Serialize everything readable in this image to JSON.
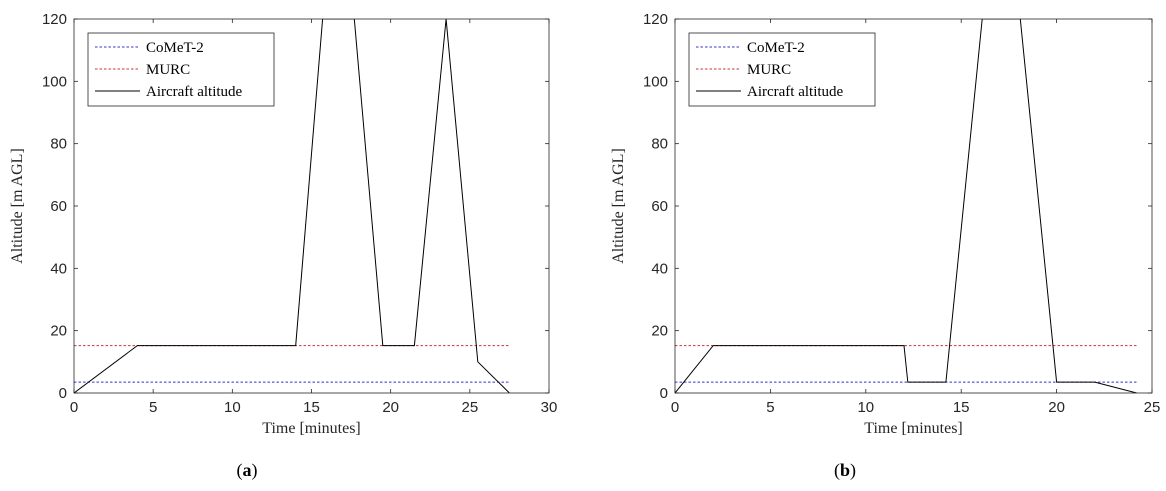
{
  "colors": {
    "comet": "#3333cc",
    "murc": "#cc3333",
    "aircraft": "#000000",
    "axis": "#262626"
  },
  "panels": [
    {
      "caption_letter": "a",
      "chart_data": {
        "type": "line",
        "title": "",
        "xlabel": "Time [minutes]",
        "ylabel": "Altitude [m AGL]",
        "xlim": [
          0,
          30
        ],
        "ylim": [
          0,
          120
        ],
        "xticks": [
          0,
          5,
          10,
          15,
          20,
          25,
          30
        ],
        "yticks": [
          0,
          20,
          40,
          60,
          80,
          100,
          120
        ],
        "grid": false,
        "legend_position": "top-left",
        "series": [
          {
            "name": "CoMeT-2",
            "style": "dashed",
            "color": "#3333cc",
            "x": [
              0,
              27.5
            ],
            "y": [
              3.5,
              3.5
            ]
          },
          {
            "name": "MURC",
            "style": "dashed",
            "color": "#cc3333",
            "x": [
              0,
              27.5
            ],
            "y": [
              15.2,
              15.2
            ]
          },
          {
            "name": "Aircraft altitude",
            "style": "solid",
            "color": "#000000",
            "x": [
              0,
              4,
              14,
              15.7,
              17.7,
              19.5,
              21.5,
              23.5,
              25.5,
              27.5
            ],
            "y": [
              0,
              15.2,
              15.2,
              120,
              120,
              15.2,
              15.2,
              120,
              10,
              0
            ]
          }
        ]
      }
    },
    {
      "caption_letter": "b",
      "chart_data": {
        "type": "line",
        "title": "",
        "xlabel": "Time [minutes]",
        "ylabel": "Altitude [m AGL]",
        "xlim": [
          0,
          25
        ],
        "ylim": [
          0,
          120
        ],
        "xticks": [
          0,
          5,
          10,
          15,
          20,
          25
        ],
        "yticks": [
          0,
          20,
          40,
          60,
          80,
          100,
          120
        ],
        "grid": false,
        "legend_position": "top-left",
        "series": [
          {
            "name": "CoMeT-2",
            "style": "dashed",
            "color": "#3333cc",
            "x": [
              0,
              24.2
            ],
            "y": [
              3.5,
              3.5
            ]
          },
          {
            "name": "MURC",
            "style": "dashed",
            "color": "#cc3333",
            "x": [
              0,
              24.2
            ],
            "y": [
              15.2,
              15.2
            ]
          },
          {
            "name": "Aircraft altitude",
            "style": "solid",
            "color": "#000000",
            "x": [
              0,
              2,
              12,
              12.2,
              14.2,
              16.1,
              18.1,
              20,
              22,
              24.2
            ],
            "y": [
              0,
              15.2,
              15.2,
              3.5,
              3.5,
              120,
              120,
              3.5,
              3.5,
              0
            ]
          }
        ]
      }
    }
  ]
}
